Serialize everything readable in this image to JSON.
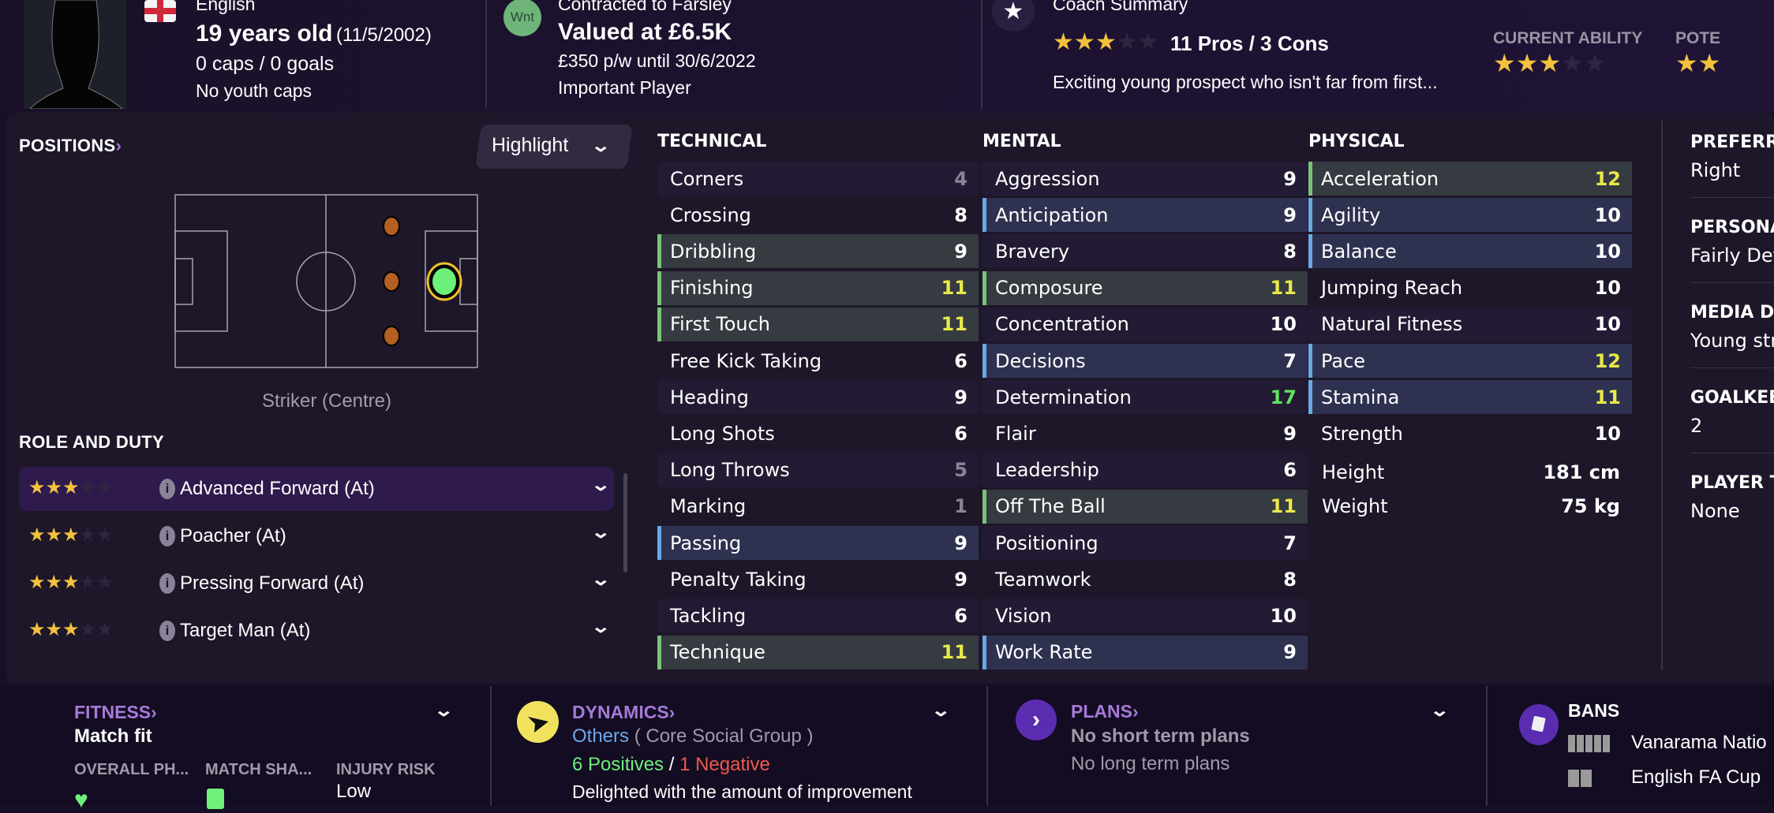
{
  "header": {
    "nationality": "English",
    "age": "19 years old",
    "dob": "(11/5/2002)",
    "caps": "0 caps / 0 goals",
    "youth_caps": "No youth caps",
    "club_badge": "Wnt",
    "contract": "Contracted to Farsley",
    "value": "Valued at £6.5K",
    "wage": "£350 p/w until 30/6/2022",
    "squad_status": "Important Player",
    "coach_summary_title": "Coach Summary",
    "coach_stars": 3,
    "pros_cons": "11 Pros / 3 Cons",
    "coach_text": "Exciting young prospect who isn't far from first...",
    "current_ability_label": "CURRENT ABILITY",
    "current_ability_stars": 3,
    "potential_label": "POTE",
    "potential_stars": 2
  },
  "positions": {
    "title": "POSITIONS",
    "highlight_label": "Highlight",
    "position_name": "Striker (Centre)",
    "role_title": "ROLE AND DUTY",
    "roles": [
      {
        "stars": 3,
        "label": "Advanced Forward (At)",
        "selected": true
      },
      {
        "stars": 3,
        "label": "Poacher (At)"
      },
      {
        "stars": 3,
        "label": "Pressing Forward (At)"
      },
      {
        "stars": 3,
        "label": "Target Man (At)"
      }
    ]
  },
  "technical": {
    "title": "TECHNICAL",
    "rows": [
      {
        "name": "Corners",
        "value": "4"
      },
      {
        "name": "Crossing",
        "value": "8"
      },
      {
        "name": "Dribbling",
        "value": "9",
        "hl": "g"
      },
      {
        "name": "Finishing",
        "value": "11",
        "hl": "g"
      },
      {
        "name": "First Touch",
        "value": "11",
        "hl": "g"
      },
      {
        "name": "Free Kick Taking",
        "value": "6"
      },
      {
        "name": "Heading",
        "value": "9"
      },
      {
        "name": "Long Shots",
        "value": "6"
      },
      {
        "name": "Long Throws",
        "value": "5"
      },
      {
        "name": "Marking",
        "value": "1"
      },
      {
        "name": "Passing",
        "value": "9",
        "hl": "b"
      },
      {
        "name": "Penalty Taking",
        "value": "9"
      },
      {
        "name": "Tackling",
        "value": "6"
      },
      {
        "name": "Technique",
        "value": "11",
        "hl": "g"
      }
    ]
  },
  "mental": {
    "title": "MENTAL",
    "rows": [
      {
        "name": "Aggression",
        "value": "9"
      },
      {
        "name": "Anticipation",
        "value": "9",
        "hl": "b"
      },
      {
        "name": "Bravery",
        "value": "8"
      },
      {
        "name": "Composure",
        "value": "11",
        "hl": "g"
      },
      {
        "name": "Concentration",
        "value": "10"
      },
      {
        "name": "Decisions",
        "value": "7",
        "hl": "b"
      },
      {
        "name": "Determination",
        "value": "17"
      },
      {
        "name": "Flair",
        "value": "9"
      },
      {
        "name": "Leadership",
        "value": "6"
      },
      {
        "name": "Off The Ball",
        "value": "11",
        "hl": "g"
      },
      {
        "name": "Positioning",
        "value": "7"
      },
      {
        "name": "Teamwork",
        "value": "8"
      },
      {
        "name": "Vision",
        "value": "10"
      },
      {
        "name": "Work Rate",
        "value": "9",
        "hl": "b"
      }
    ]
  },
  "physical": {
    "title": "PHYSICAL",
    "rows": [
      {
        "name": "Acceleration",
        "value": "12",
        "hl": "g"
      },
      {
        "name": "Agility",
        "value": "10",
        "hl": "b"
      },
      {
        "name": "Balance",
        "value": "10",
        "hl": "b"
      },
      {
        "name": "Jumping Reach",
        "value": "10"
      },
      {
        "name": "Natural Fitness",
        "value": "10"
      },
      {
        "name": "Pace",
        "value": "12",
        "hl": "b"
      },
      {
        "name": "Stamina",
        "value": "11",
        "hl": "b"
      },
      {
        "name": "Strength",
        "value": "10"
      }
    ],
    "height_label": "Height",
    "height": "181 cm",
    "weight_label": "Weight",
    "weight": "75 kg"
  },
  "info": [
    {
      "label": "PREFERR",
      "value": "Right"
    },
    {
      "label": "PERSONA",
      "value": "Fairly Det"
    },
    {
      "label": "MEDIA D",
      "value": "Young str"
    },
    {
      "label": "GOALKEE",
      "value": "2"
    },
    {
      "label": "PLAYER T",
      "value": "None"
    }
  ],
  "fitness": {
    "title": "FITNESS",
    "status": "Match fit",
    "col1": "OVERALL PH...",
    "col2": "MATCH SHA...",
    "col3": "INJURY RISK",
    "injury": "Low"
  },
  "dynamics": {
    "title": "DYNAMICS",
    "group": "Others",
    "group_suffix": "( Core Social Group )",
    "positives": "6 Positives",
    "sep": "/",
    "negatives": "1 Negative",
    "text": "Delighted with the amount of improvement"
  },
  "plans": {
    "title": "PLANS",
    "short": "No short term plans",
    "long": "No long term plans"
  },
  "bans": {
    "title": "BANS",
    "items": [
      "Vanarama Natio",
      "English FA Cup"
    ]
  },
  "colors": {
    "accent": "#a67ad8",
    "green_highlight": "#7ac47a",
    "blue_highlight": "#6aa9e6",
    "value_yellow": "#e8e84a",
    "value_green": "#5fe35f",
    "value_grey": "#8a8594",
    "star": "#f2c13d"
  }
}
